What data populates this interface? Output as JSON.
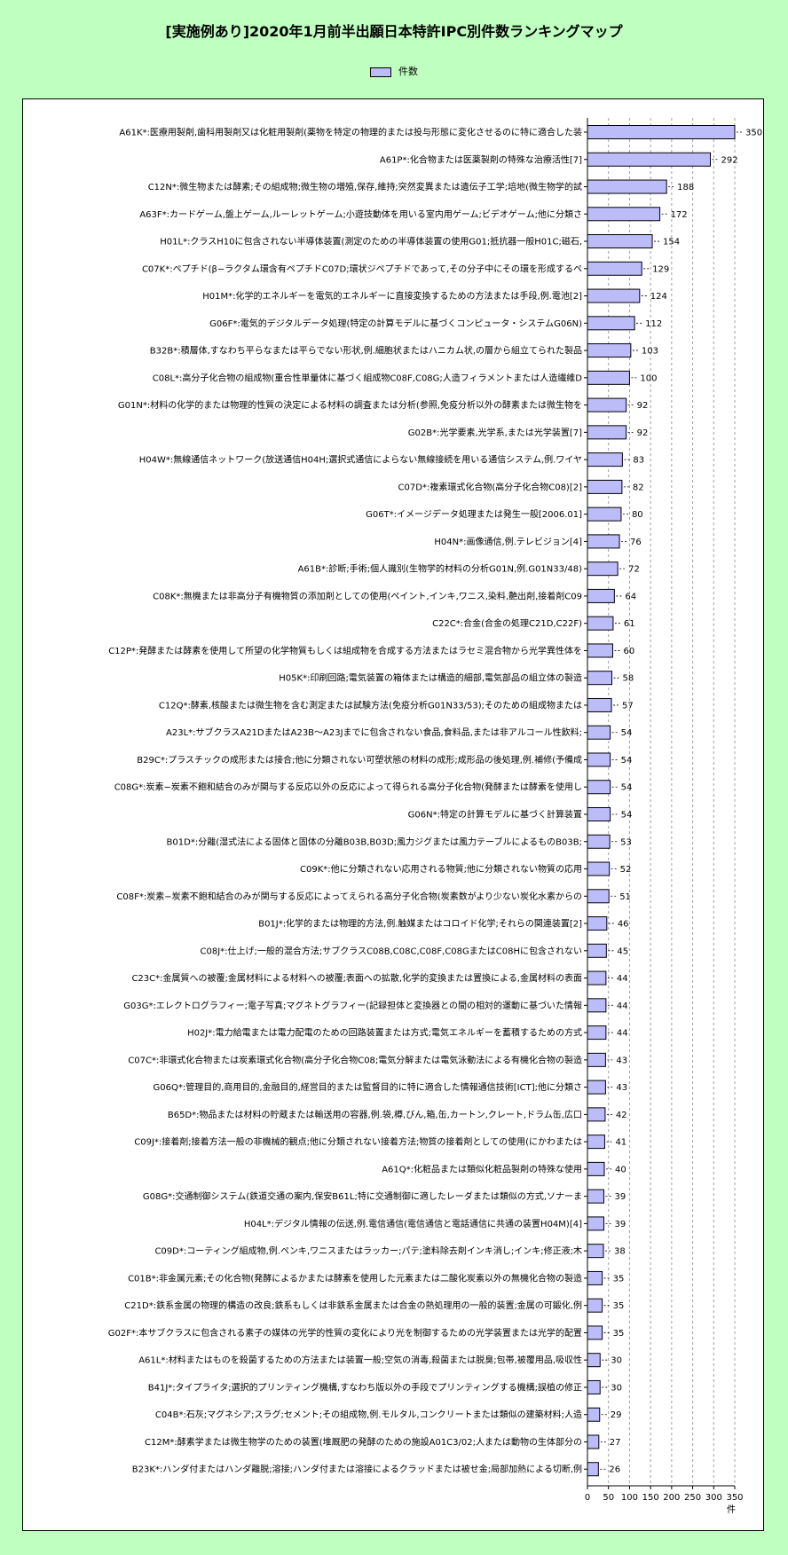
{
  "title": "[実施例あり]2020年1月前半出願日本特許IPC別件数ランキングマップ",
  "legend": {
    "label": "件数",
    "color": "#bcbcf8"
  },
  "chart_data": {
    "type": "bar",
    "orientation": "horizontal",
    "title": "[実施例あり]2020年1月前半出願日本特許IPC別件数ランキングマップ",
    "xlabel": "件",
    "xlim": [
      0,
      350
    ],
    "xticks": [
      0,
      50,
      100,
      150,
      200,
      250,
      300,
      350
    ],
    "grid": true,
    "legend_position": "top-center",
    "series": [
      {
        "name": "件数",
        "color": "#bcbcf8"
      }
    ],
    "categories": [
      "A61K*:医療用製剤,歯科用製剤又は化粧用製剤(薬物を特定の物理的または投与形態に変化させるのに特に適合した装",
      "A61P*:化合物または医薬製剤の特殊な治療活性[7]",
      "C12N*:微生物または酵素;その組成物;微生物の増殖,保存,維持;突然変異または遺伝子工学;培地(微生物学的試",
      "A63F*:カードゲーム,盤上ゲーム,ルーレットゲーム;小遊技動体を用いる室内用ゲーム;ビデオゲーム;他に分類さ",
      "H01L*:クラスH10に包含されない半導体装置(測定のための半導体装置の使用G01;抵抗器一般H01C;磁石,",
      "C07K*:ペプチド(β−ラクタム環含有ペプチドC07D;環状ジペプチドであって,その分子中にその環を形成するペ",
      "H01M*:化学的エネルギーを電気的エネルギーに直接変換するための方法または手段,例.電池[2]",
      "G06F*:電気的デジタルデータ処理(特定の計算モデルに基づくコンピュータ・システムG06N)",
      "B32B*:積層体,すなわち平らなまたは平らでない形状,例.細胞状またはハニカム状,の層から組立てられた製品",
      "C08L*:高分子化合物の組成物(重合性単量体に基づく組成物C08F,C08G;人造フィラメントまたは人造繊維D",
      "G01N*:材料の化学的または物理的性質の決定による材料の調査または分析(参照,免疫分析以外の酵素または微生物を",
      "G02B*:光学要素,光学系,または光学装置[7]",
      "H04W*:無線通信ネットワーク(放送通信H04H;選択式通信によらない無線接続を用いる通信システム,例.ワイヤ",
      "C07D*:複素環式化合物(高分子化合物C08)[2]",
      "G06T*:イメージデータ処理または発生一般[2006.01]",
      "H04N*:画像通信,例.テレビジョン[4]",
      "A61B*:診断;手術;個人識別(生物学的材料の分析G01N,例.G01N33/48)",
      "C08K*:無機または非高分子有機物質の添加剤としての使用(ペイント,インキ,ワニス,染料,艶出剤,接着剤C09",
      "C22C*:合金(合金の処理C21D,C22F)",
      "C12P*:発酵または酵素を使用して所望の化学物質もしくは組成物を合成する方法またはラセミ混合物から光学異性体を",
      "H05K*:印刷回路;電気装置の箱体または構造的細部,電気部品の組立体の製造",
      "C12Q*:酵素,核酸または微生物を含む測定または試験方法(免疫分析G01N33/53);そのための組成物または",
      "A23L*:サブクラスA21DまたはA23B〜A23Jまでに包含されない食品,食料品,または非アルコール性飲料;",
      "B29C*:プラスチックの成形または接合;他に分類されない可塑状態の材料の成形;成形品の後処理,例.補修(予備成",
      "C08G*:炭素−炭素不飽和結合のみが関与する反応以外の反応によって得られる高分子化合物(発酵または酵素を使用し",
      "G06N*:特定の計算モデルに基づく計算装置",
      "B01D*:分離(湿式法による固体と固体の分離B03B,B03D;風力ジグまたは風力テーブルによるものB03B;",
      "C09K*:他に分類されない応用される物質;他に分類されない物質の応用",
      "C08F*:炭素−炭素不飽和結合のみが関与する反応によってえられる高分子化合物(炭素数がより少ない炭化水素からの",
      "B01J*:化学的または物理的方法,例.触媒またはコロイド化学;それらの関連装置[2]",
      "C08J*:仕上げ;一般的混合方法;サブクラスC08B,C08C,C08F,C08GまたはC08Hに包含されない",
      "C23C*:金属質への被覆;金属材料による材料への被覆;表面への拡散,化学的変換または置換による,金属材料の表面",
      "G03G*:エレクトログラフィー;電子写真;マグネトグラフィー(記録担体と変換器との間の相対的運動に基づいた情報",
      "H02J*:電力給電または電力配電のための回路装置または方式;電気エネルギーを蓄積するための方式",
      "C07C*:非環式化合物または炭素環式化合物(高分子化合物C08;電気分解または電気泳動法による有機化合物の製造",
      "G06Q*:管理目的,商用目的,金融目的,経営目的または監督目的に特に適合した情報通信技術[ICT];他に分類さ",
      "B65D*:物品または材料の貯蔵または輸送用の容器,例.袋,樽,びん,箱,缶,カートン,クレート,ドラム缶,広口",
      "C09J*:接着剤;接着方法一般の非機械的観点;他に分類されない接着方法;物質の接着剤としての使用(にかわまたは",
      "A61Q*:化粧品または類似化粧品製剤の特殊な使用",
      "G08G*:交通制御システム(鉄道交通の案内,保安B61L;特に交通制御に適したレーダまたは類似の方式,ソナーま",
      "H04L*:デジタル情報の伝送,例.電信通信(電信通信と電話通信に共通の装置H04M)[4]",
      "C09D*:コーティング組成物,例.ペンキ,ワニスまたはラッカー;パテ;塗料除去剤インキ消し;インキ;修正液;木",
      "C01B*:非金属元素;その化合物(発酵によるかまたは酵素を使用した元素または二酸化炭素以外の無機化合物の製造",
      "C21D*:鉄系金属の物理的構造の改良;鉄系もしくは非鉄系金属または合金の熱処理用の一般的装置;金属の可鍛化,例",
      "G02F*:本サブクラスに包含される素子の媒体の光学的性質の変化により光を制御するための光学装置または光学的配置",
      "A61L*:材料またはものを殺菌するための方法または装置一般;空気の消毒,殺菌または脱臭;包帯,被覆用品,吸収性",
      "B41J*:タイプライタ;選択的プリンティング機構,すなわち版以外の手段でプリンティングする機構;誤植の修正",
      "C04B*:石灰;マグネシア;スラグ;セメント;その組成物,例.モルタル,コンクリートまたは類似の建築材料;人造",
      "C12M*:酵素学または微生物学のための装置(堆厩肥の発酵のための施設A01C3/02;人または動物の生体部分の",
      "B23K*:ハンダ付またはハンダ離脱;溶接;ハンダ付または溶接によるクラッドまたは被せ金;局部加熱による切断,例"
    ],
    "values": [
      350,
      292,
      188,
      172,
      154,
      129,
      124,
      112,
      103,
      100,
      92,
      92,
      83,
      82,
      80,
      76,
      72,
      64,
      61,
      60,
      58,
      57,
      54,
      54,
      54,
      54,
      53,
      52,
      51,
      46,
      45,
      44,
      44,
      44,
      43,
      43,
      42,
      41,
      40,
      39,
      39,
      38,
      35,
      35,
      35,
      30,
      30,
      29,
      27,
      26
    ]
  }
}
